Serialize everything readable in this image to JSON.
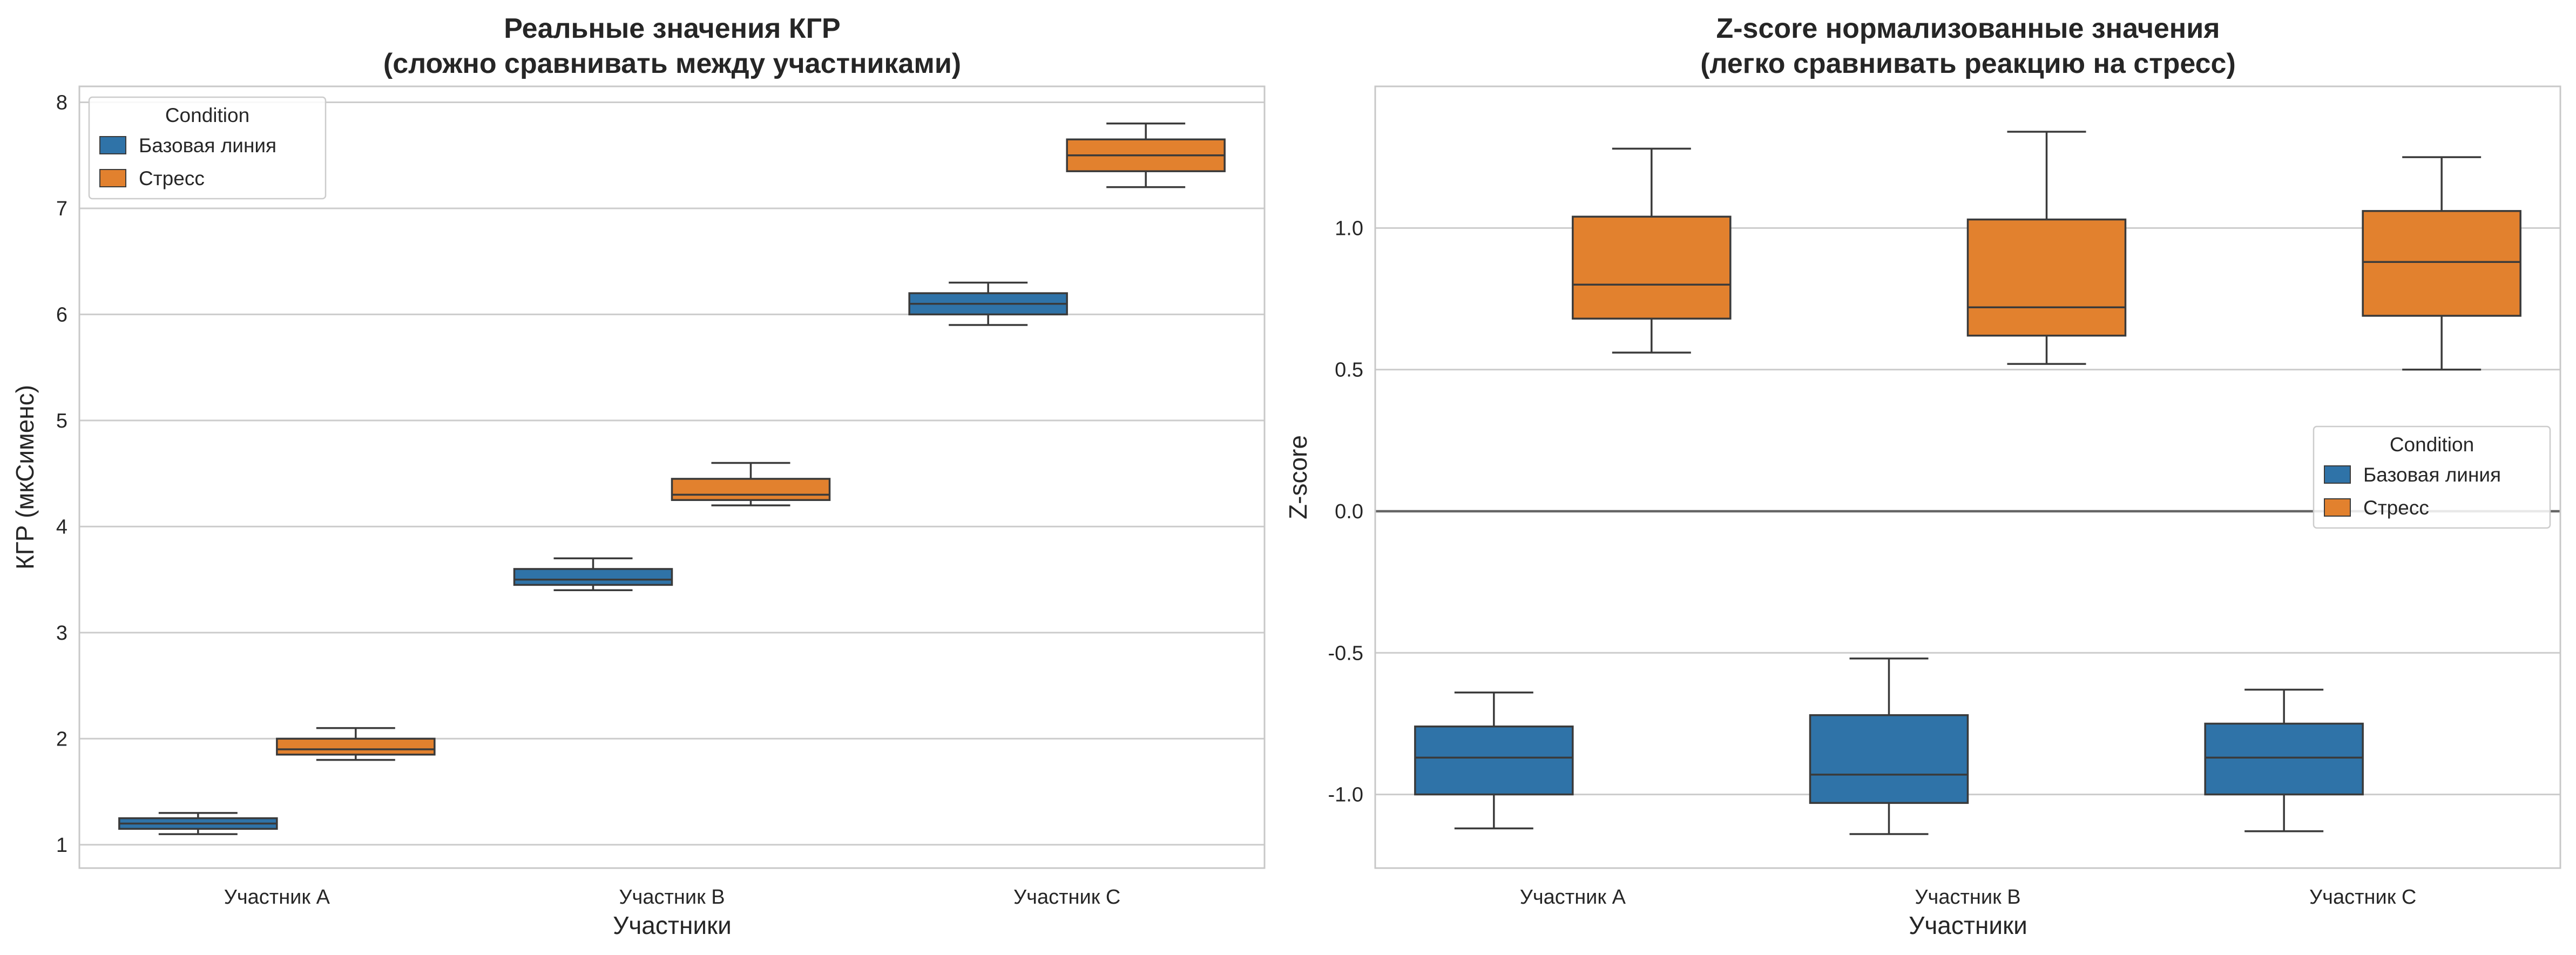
{
  "colors": {
    "baseline": "#2f73a8",
    "stress": "#e2812e",
    "grid": "#cccccc",
    "frame": "#c8c8c8",
    "box_edge": "#3a3a3a",
    "zero_line": "#666666"
  },
  "chart_data": [
    {
      "type": "box",
      "title_lines": [
        "Реальные значения КГР",
        "(сложно сравнивать между участниками)"
      ],
      "xlabel": "Участники",
      "ylabel": "КГР (мкСименс)",
      "ylim": [
        0.78,
        8.15
      ],
      "yticks": [
        1,
        2,
        3,
        4,
        5,
        6,
        7,
        8
      ],
      "ytick_labels": [
        "1",
        "2",
        "3",
        "4",
        "5",
        "6",
        "7",
        "8"
      ],
      "grid": true,
      "legend_position": "top-left",
      "legend": {
        "title": "Condition",
        "items": [
          "Базовая линия",
          "Стресс"
        ]
      },
      "categories": [
        "Участник A",
        "Участник B",
        "Участник C"
      ],
      "series": [
        {
          "name": "Базовая линия",
          "color_key": "baseline",
          "boxes": [
            {
              "whisker_low": 1.1,
              "q1": 1.15,
              "median": 1.2,
              "q3": 1.25,
              "whisker_high": 1.3
            },
            {
              "whisker_low": 3.4,
              "q1": 3.45,
              "median": 3.5,
              "q3": 3.6,
              "whisker_high": 3.7
            },
            {
              "whisker_low": 5.9,
              "q1": 6.0,
              "median": 6.1,
              "q3": 6.2,
              "whisker_high": 6.3
            }
          ]
        },
        {
          "name": "Стресс",
          "color_key": "stress",
          "boxes": [
            {
              "whisker_low": 1.8,
              "q1": 1.85,
              "median": 1.9,
              "q3": 2.0,
              "whisker_high": 2.1
            },
            {
              "whisker_low": 4.2,
              "q1": 4.25,
              "median": 4.3,
              "q3": 4.45,
              "whisker_high": 4.6
            },
            {
              "whisker_low": 7.2,
              "q1": 7.35,
              "median": 7.5,
              "q3": 7.65,
              "whisker_high": 7.8
            }
          ]
        }
      ]
    },
    {
      "type": "box",
      "title_lines": [
        "Z-score нормализованные значения",
        "(легко сравнивать реакцию на стресс)"
      ],
      "xlabel": "Участники",
      "ylabel": "Z-score",
      "ylim": [
        -1.26,
        1.5
      ],
      "yticks": [
        -1.0,
        -0.5,
        0.0,
        0.5,
        1.0
      ],
      "ytick_labels": [
        "-1.0",
        "-0.5",
        "0.0",
        "0.5",
        "1.0"
      ],
      "grid": true,
      "zero_line": true,
      "legend_position": "center-right",
      "legend": {
        "title": "Condition",
        "items": [
          "Базовая линия",
          "Стресс"
        ]
      },
      "categories": [
        "Участник A",
        "Участник B",
        "Участник C"
      ],
      "series": [
        {
          "name": "Базовая линия",
          "color_key": "baseline",
          "boxes": [
            {
              "whisker_low": -1.12,
              "q1": -1.0,
              "median": -0.87,
              "q3": -0.76,
              "whisker_high": -0.64
            },
            {
              "whisker_low": -1.14,
              "q1": -1.03,
              "median": -0.93,
              "q3": -0.72,
              "whisker_high": -0.52
            },
            {
              "whisker_low": -1.13,
              "q1": -1.0,
              "median": -0.87,
              "q3": -0.75,
              "whisker_high": -0.63
            }
          ]
        },
        {
          "name": "Стресс",
          "color_key": "stress",
          "boxes": [
            {
              "whisker_low": 0.56,
              "q1": 0.68,
              "median": 0.8,
              "q3": 1.04,
              "whisker_high": 1.28
            },
            {
              "whisker_low": 0.52,
              "q1": 0.62,
              "median": 0.72,
              "q3": 1.03,
              "whisker_high": 1.34
            },
            {
              "whisker_low": 0.5,
              "q1": 0.69,
              "median": 0.88,
              "q3": 1.06,
              "whisker_high": 1.25
            }
          ]
        }
      ]
    }
  ]
}
